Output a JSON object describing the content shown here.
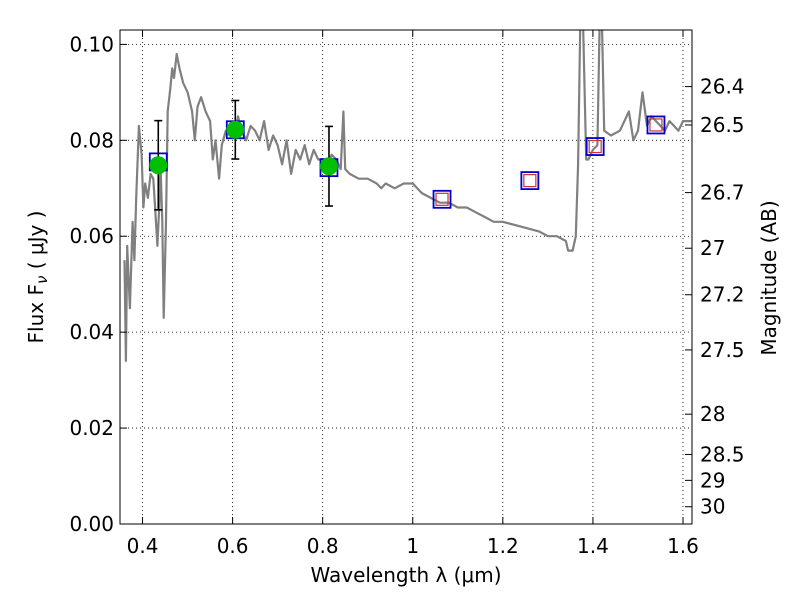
{
  "chart_data": {
    "type": "line",
    "xlabel": "Wavelength  λ (μm)",
    "ylabel": "Flux  F",
    "ylabel_sub": "ν",
    "ylabel_unit": "  ( μJy )",
    "ylabel_right": "Magnitude (AB)",
    "xlim": [
      0.35,
      1.62
    ],
    "ylim": [
      0.0,
      0.103
    ],
    "grid": true,
    "x_ticks": [
      0.4,
      0.6,
      0.8,
      1.0,
      1.2,
      1.4,
      1.6
    ],
    "x_tick_labels": [
      "0.4",
      "0.6",
      "0.8",
      "1",
      "1.2",
      "1.4",
      "1.6"
    ],
    "y_ticks": [
      0.0,
      0.02,
      0.04,
      0.06,
      0.08,
      0.1
    ],
    "y_tick_labels": [
      "0.00",
      "0.02",
      "0.04",
      "0.06",
      "0.08",
      "0.10"
    ],
    "right_ticks": [
      {
        "flux": 0.0912,
        "label": "26.4"
      },
      {
        "flux": 0.0832,
        "label": "26.5"
      },
      {
        "flux": 0.0691,
        "label": "26.7"
      },
      {
        "flux": 0.0575,
        "label": "27"
      },
      {
        "flux": 0.0478,
        "label": "27.2"
      },
      {
        "flux": 0.0363,
        "label": "27.5"
      },
      {
        "flux": 0.0229,
        "label": "28"
      },
      {
        "flux": 0.0145,
        "label": "28.5"
      },
      {
        "flux": 0.0091,
        "label": "29"
      },
      {
        "flux": 0.0036,
        "label": "30"
      }
    ],
    "series": [
      {
        "kind": "model-spectrum",
        "color": "#808080",
        "points": [
          [
            0.36,
            0.055
          ],
          [
            0.363,
            0.034
          ],
          [
            0.366,
            0.058
          ],
          [
            0.372,
            0.045
          ],
          [
            0.378,
            0.063
          ],
          [
            0.382,
            0.055
          ],
          [
            0.386,
            0.068
          ],
          [
            0.392,
            0.083
          ],
          [
            0.398,
            0.077
          ],
          [
            0.402,
            0.066
          ],
          [
            0.406,
            0.071
          ],
          [
            0.412,
            0.068
          ],
          [
            0.418,
            0.073
          ],
          [
            0.424,
            0.072
          ],
          [
            0.428,
            0.066
          ],
          [
            0.433,
            0.058
          ],
          [
            0.437,
            0.066
          ],
          [
            0.44,
            0.075
          ],
          [
            0.444,
            0.063
          ],
          [
            0.447,
            0.043
          ],
          [
            0.452,
            0.062
          ],
          [
            0.456,
            0.086
          ],
          [
            0.462,
            0.091
          ],
          [
            0.466,
            0.095
          ],
          [
            0.47,
            0.093
          ],
          [
            0.476,
            0.098
          ],
          [
            0.482,
            0.095
          ],
          [
            0.49,
            0.092
          ],
          [
            0.5,
            0.09
          ],
          [
            0.51,
            0.086
          ],
          [
            0.516,
            0.08
          ],
          [
            0.522,
            0.087
          ],
          [
            0.53,
            0.089
          ],
          [
            0.54,
            0.086
          ],
          [
            0.55,
            0.084
          ],
          [
            0.556,
            0.076
          ],
          [
            0.562,
            0.08
          ],
          [
            0.57,
            0.072
          ],
          [
            0.576,
            0.079
          ],
          [
            0.585,
            0.082
          ],
          [
            0.595,
            0.081
          ],
          [
            0.6,
            0.083
          ],
          [
            0.606,
            0.081
          ],
          [
            0.612,
            0.085
          ],
          [
            0.62,
            0.082
          ],
          [
            0.63,
            0.08
          ],
          [
            0.64,
            0.083
          ],
          [
            0.65,
            0.082
          ],
          [
            0.66,
            0.08
          ],
          [
            0.67,
            0.084
          ],
          [
            0.68,
            0.078
          ],
          [
            0.69,
            0.081
          ],
          [
            0.7,
            0.079
          ],
          [
            0.71,
            0.075
          ],
          [
            0.72,
            0.08
          ],
          [
            0.73,
            0.073
          ],
          [
            0.74,
            0.078
          ],
          [
            0.75,
            0.076
          ],
          [
            0.76,
            0.079
          ],
          [
            0.77,
            0.075
          ],
          [
            0.78,
            0.078
          ],
          [
            0.79,
            0.076
          ],
          [
            0.8,
            0.076
          ],
          [
            0.81,
            0.075
          ],
          [
            0.82,
            0.077
          ],
          [
            0.83,
            0.076
          ],
          [
            0.84,
            0.074
          ],
          [
            0.846,
            0.086
          ],
          [
            0.85,
            0.074
          ],
          [
            0.86,
            0.073
          ],
          [
            0.88,
            0.072
          ],
          [
            0.9,
            0.072
          ],
          [
            0.92,
            0.071
          ],
          [
            0.93,
            0.07
          ],
          [
            0.94,
            0.071
          ],
          [
            0.96,
            0.07
          ],
          [
            0.98,
            0.071
          ],
          [
            1.0,
            0.071
          ],
          [
            1.02,
            0.069
          ],
          [
            1.04,
            0.068
          ],
          [
            1.06,
            0.067
          ],
          [
            1.08,
            0.067
          ],
          [
            1.1,
            0.066
          ],
          [
            1.12,
            0.066
          ],
          [
            1.14,
            0.065
          ],
          [
            1.16,
            0.064
          ],
          [
            1.18,
            0.063
          ],
          [
            1.2,
            0.063
          ],
          [
            1.24,
            0.062
          ],
          [
            1.28,
            0.061
          ],
          [
            1.3,
            0.06
          ],
          [
            1.32,
            0.06
          ],
          [
            1.34,
            0.059
          ],
          [
            1.345,
            0.057
          ],
          [
            1.355,
            0.057
          ],
          [
            1.362,
            0.06
          ],
          [
            1.367,
            0.075
          ],
          [
            1.372,
            0.105
          ],
          [
            1.378,
            0.105
          ],
          [
            1.385,
            0.076
          ],
          [
            1.39,
            0.076
          ],
          [
            1.4,
            0.078
          ],
          [
            1.41,
            0.079
          ],
          [
            1.415,
            0.105
          ],
          [
            1.42,
            0.105
          ],
          [
            1.425,
            0.082
          ],
          [
            1.44,
            0.081
          ],
          [
            1.46,
            0.082
          ],
          [
            1.48,
            0.086
          ],
          [
            1.49,
            0.08
          ],
          [
            1.5,
            0.082
          ],
          [
            1.51,
            0.09
          ],
          [
            1.52,
            0.083
          ],
          [
            1.53,
            0.085
          ],
          [
            1.54,
            0.084
          ],
          [
            1.55,
            0.083
          ],
          [
            1.56,
            0.082
          ],
          [
            1.57,
            0.084
          ],
          [
            1.58,
            0.083
          ],
          [
            1.59,
            0.082
          ],
          [
            1.6,
            0.084
          ],
          [
            1.62,
            0.084
          ]
        ]
      },
      {
        "kind": "observed-photometry",
        "marker": "circle",
        "color": "#00bf00",
        "points": [
          {
            "x": 0.435,
            "y": 0.0748,
            "yerr": 0.0093
          },
          {
            "x": 0.606,
            "y": 0.0822,
            "yerr": 0.0061
          },
          {
            "x": 0.814,
            "y": 0.0746,
            "yerr": 0.0083
          }
        ]
      },
      {
        "kind": "model-photometry",
        "marker": "square",
        "color": "#0000cc",
        "points": [
          {
            "x": 0.435,
            "y": 0.0755
          },
          {
            "x": 0.606,
            "y": 0.0822
          },
          {
            "x": 0.814,
            "y": 0.0743
          },
          {
            "x": 1.065,
            "y": 0.0677
          },
          {
            "x": 1.26,
            "y": 0.0716
          },
          {
            "x": 1.405,
            "y": 0.0787
          },
          {
            "x": 1.54,
            "y": 0.0832
          }
        ]
      },
      {
        "kind": "model-photometry-inner",
        "marker": "square",
        "color": "#cc3333",
        "points": [
          {
            "x": 1.065,
            "y": 0.0677
          },
          {
            "x": 1.26,
            "y": 0.0716
          },
          {
            "x": 1.405,
            "y": 0.0787
          },
          {
            "x": 1.54,
            "y": 0.0832
          }
        ]
      }
    ]
  }
}
